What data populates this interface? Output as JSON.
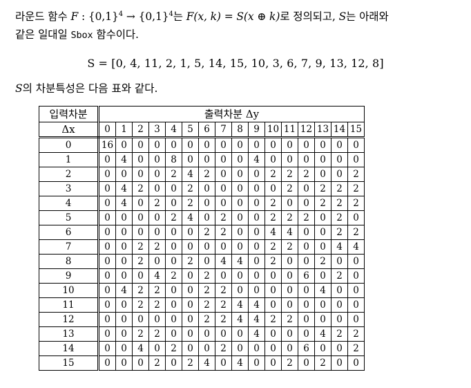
{
  "text": {
    "line1_a": "라운드 함수 ",
    "line1_F": "F",
    "line1_b": " : {0,1}",
    "line1_sup1": "4",
    "line1_c": " → {0,1}",
    "line1_sup2": "4",
    "line1_d": "는 ",
    "line1_eq": "F(x, k) = S(x ⊕ k)",
    "line1_e": "로 정의되고, ",
    "line1_S": "S",
    "line1_f": "는 아래와",
    "line2_a": "같은 일대일 ",
    "line2_sbox": "Sbox",
    "line2_b": " 함수이다.",
    "formula": "S = [0, 4, 11, 2, 1, 5, 14, 15, 10, 3, 6, 7, 9, 13, 12, 8]",
    "caption_S": "S",
    "caption_rest": "의 차분특성은 다음 표와 같다."
  },
  "table": {
    "row_header_line1": "입력차분",
    "row_header_line2": "Δx",
    "col_header": "출력차분 Δy",
    "columns": [
      "0",
      "1",
      "2",
      "3",
      "4",
      "5",
      "6",
      "7",
      "8",
      "9",
      "10",
      "11",
      "12",
      "13",
      "14",
      "15"
    ],
    "rows": [
      {
        "label": "0",
        "values": [
          "16",
          "0",
          "0",
          "0",
          "0",
          "0",
          "0",
          "0",
          "0",
          "0",
          "0",
          "0",
          "0",
          "0",
          "0",
          "0"
        ]
      },
      {
        "label": "1",
        "values": [
          "0",
          "4",
          "0",
          "0",
          "8",
          "0",
          "0",
          "0",
          "0",
          "4",
          "0",
          "0",
          "0",
          "0",
          "0",
          "0"
        ]
      },
      {
        "label": "2",
        "values": [
          "0",
          "0",
          "0",
          "0",
          "2",
          "4",
          "2",
          "0",
          "0",
          "0",
          "2",
          "2",
          "2",
          "0",
          "0",
          "2"
        ]
      },
      {
        "label": "3",
        "values": [
          "0",
          "4",
          "2",
          "0",
          "0",
          "2",
          "0",
          "0",
          "0",
          "0",
          "0",
          "2",
          "0",
          "2",
          "2",
          "2"
        ]
      },
      {
        "label": "4",
        "values": [
          "0",
          "4",
          "0",
          "2",
          "0",
          "2",
          "0",
          "0",
          "0",
          "0",
          "2",
          "0",
          "0",
          "2",
          "2",
          "2"
        ]
      },
      {
        "label": "5",
        "values": [
          "0",
          "0",
          "0",
          "0",
          "2",
          "4",
          "0",
          "2",
          "0",
          "0",
          "2",
          "2",
          "2",
          "0",
          "2",
          "0"
        ]
      },
      {
        "label": "6",
        "values": [
          "0",
          "0",
          "0",
          "0",
          "0",
          "0",
          "2",
          "2",
          "0",
          "0",
          "4",
          "4",
          "0",
          "0",
          "2",
          "2"
        ]
      },
      {
        "label": "7",
        "values": [
          "0",
          "0",
          "2",
          "2",
          "0",
          "0",
          "0",
          "0",
          "0",
          "0",
          "2",
          "2",
          "0",
          "0",
          "4",
          "4"
        ]
      },
      {
        "label": "8",
        "values": [
          "0",
          "0",
          "2",
          "0",
          "0",
          "2",
          "0",
          "4",
          "4",
          "0",
          "2",
          "0",
          "0",
          "2",
          "0",
          "0"
        ]
      },
      {
        "label": "9",
        "values": [
          "0",
          "0",
          "0",
          "4",
          "2",
          "0",
          "2",
          "0",
          "0",
          "0",
          "0",
          "0",
          "6",
          "0",
          "2",
          "0"
        ]
      },
      {
        "label": "10",
        "values": [
          "0",
          "4",
          "2",
          "2",
          "0",
          "0",
          "2",
          "2",
          "0",
          "0",
          "0",
          "0",
          "0",
          "4",
          "0",
          "0"
        ]
      },
      {
        "label": "11",
        "values": [
          "0",
          "0",
          "2",
          "2",
          "0",
          "0",
          "2",
          "2",
          "4",
          "4",
          "0",
          "0",
          "0",
          "0",
          "0",
          "0"
        ]
      },
      {
        "label": "12",
        "values": [
          "0",
          "0",
          "0",
          "0",
          "0",
          "0",
          "2",
          "2",
          "4",
          "4",
          "2",
          "2",
          "0",
          "0",
          "0",
          "0"
        ]
      },
      {
        "label": "13",
        "values": [
          "0",
          "0",
          "2",
          "2",
          "0",
          "0",
          "0",
          "0",
          "0",
          "4",
          "0",
          "0",
          "0",
          "4",
          "2",
          "2"
        ]
      },
      {
        "label": "14",
        "values": [
          "0",
          "0",
          "4",
          "0",
          "2",
          "0",
          "0",
          "2",
          "0",
          "0",
          "0",
          "0",
          "6",
          "0",
          "0",
          "2"
        ]
      },
      {
        "label": "15",
        "values": [
          "0",
          "0",
          "0",
          "2",
          "0",
          "2",
          "4",
          "0",
          "4",
          "0",
          "0",
          "2",
          "0",
          "2",
          "0",
          "0"
        ]
      }
    ]
  }
}
